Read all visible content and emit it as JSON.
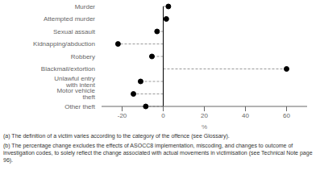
{
  "chart_data": {
    "type": "dot",
    "orientation": "horizontal",
    "categories": [
      "Murder",
      "Attempted murder",
      "Sexual assault",
      "Kidnapping/abduction",
      "Robbery",
      "Blackmail/extortion",
      "Unlawful entry with intent",
      "Motor vehicle theft",
      "Other theft"
    ],
    "values": [
      2.5,
      1.5,
      -3.0,
      -22.0,
      -5.5,
      60.0,
      -11.0,
      -14.5,
      -8.5
    ],
    "xlim": [
      -30,
      70
    ],
    "xticks": [
      -20,
      0,
      20,
      40,
      60
    ],
    "xlabel": "%",
    "color": "#000000",
    "line_style": "dashed",
    "marker": "circle",
    "annotations": [
      "(a) The definition of a victim varies according to the category of the offence (see Glossary).",
      "(b) The percentage change excludes the effects of ASOCC8 implementation, miscoding, and changes to outcome of investigation codes, to solely reflect the change associated with actual movements in victimisation (see Technical Note page 96)."
    ]
  }
}
